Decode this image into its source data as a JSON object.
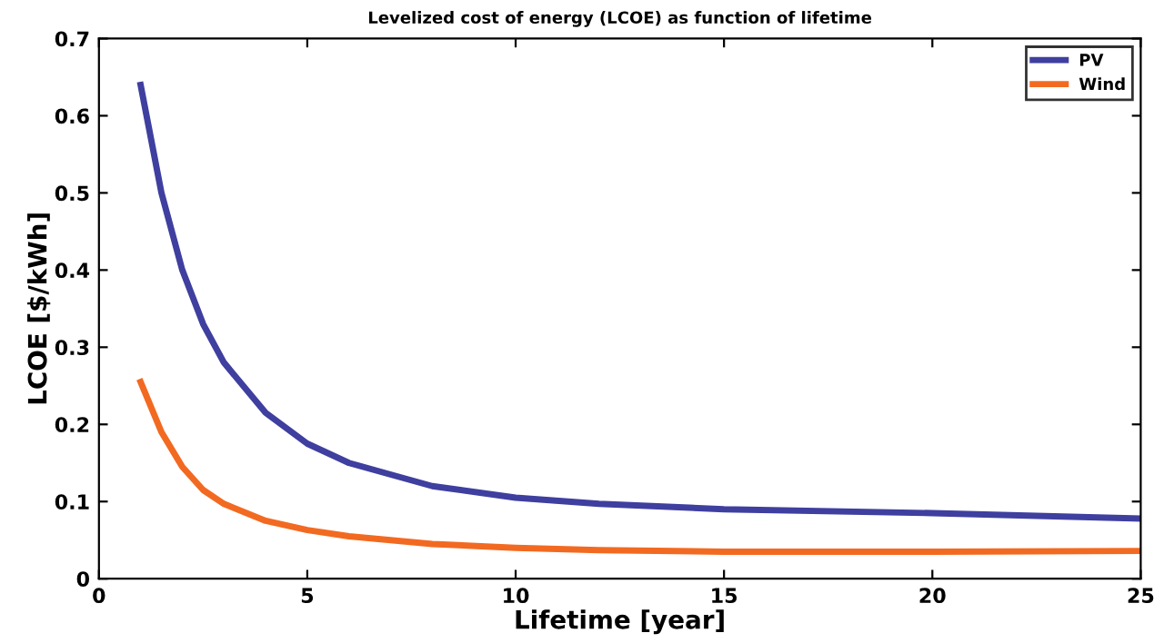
{
  "chart_data": {
    "type": "line",
    "title": "Levelized cost of energy (LCOE) as function of lifetime",
    "xlabel": "Lifetime [year]",
    "ylabel": "LCOE [$/kWh]",
    "series": [
      {
        "name": "PV",
        "color": "#3f3fa0",
        "x": [
          1,
          1.5,
          2,
          2.5,
          3,
          4,
          5,
          6,
          7,
          8,
          10,
          12,
          15,
          20,
          25
        ],
        "values": [
          0.64,
          0.5,
          0.4,
          0.33,
          0.28,
          0.215,
          0.175,
          0.15,
          0.135,
          0.12,
          0.105,
          0.097,
          0.09,
          0.085,
          0.078
        ]
      },
      {
        "name": "Wind",
        "color": "#f26a21",
        "x": [
          1,
          1.5,
          2,
          2.5,
          3,
          4,
          5,
          6,
          7,
          8,
          10,
          12,
          15,
          20,
          25
        ],
        "values": [
          0.255,
          0.19,
          0.145,
          0.115,
          0.097,
          0.075,
          0.063,
          0.055,
          0.05,
          0.045,
          0.04,
          0.037,
          0.035,
          0.035,
          0.036
        ]
      }
    ],
    "xlim": [
      0,
      25
    ],
    "ylim": [
      0,
      0.7
    ],
    "xticks": [
      0,
      5,
      10,
      15,
      20,
      25
    ],
    "yticks": [
      0,
      0.1,
      0.2,
      0.3,
      0.4,
      0.5,
      0.6,
      0.7
    ],
    "grid": false,
    "legend": "top right",
    "line_style": "solid"
  }
}
